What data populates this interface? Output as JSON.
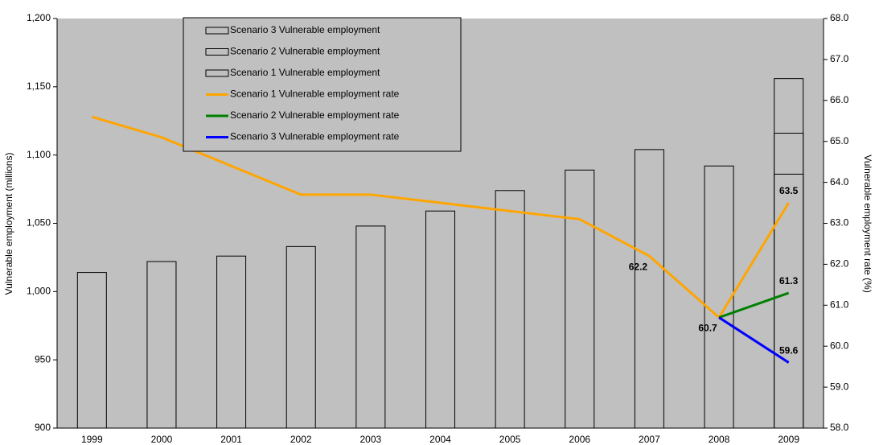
{
  "chart_data": {
    "type": "bar-line",
    "y_label": "Vulnerable employment (millions)",
    "y2_label": "Vulnerable employment rate (%)",
    "categories": [
      "1999",
      "2000",
      "2001",
      "2002",
      "2003",
      "2004",
      "2005",
      "2006",
      "2007",
      "2008",
      "2009"
    ],
    "ylim": [
      900,
      1200
    ],
    "yticks": [
      900,
      950,
      {
        "value": 1000,
        "label": "1,000"
      },
      {
        "value": 1050,
        "label": "1,050"
      },
      {
        "value": 1100,
        "label": "1,100"
      },
      {
        "value": 1150,
        "label": "1,150"
      },
      {
        "value": 1200,
        "label": "1,200"
      }
    ],
    "y2lim": [
      58,
      68
    ],
    "y2ticks": [
      {
        "value": 58,
        "label": "58.0"
      },
      {
        "value": 59,
        "label": "59.0"
      },
      {
        "value": 60,
        "label": "60.0"
      },
      {
        "value": 61,
        "label": "61.0"
      },
      {
        "value": 62,
        "label": "62.0"
      },
      {
        "value": 63,
        "label": "63.0"
      },
      {
        "value": 64,
        "label": "64.0"
      },
      {
        "value": 65,
        "label": "65.0"
      },
      {
        "value": 66,
        "label": "66.0"
      },
      {
        "value": 67,
        "label": "67.0"
      },
      {
        "value": 68,
        "label": "68.0"
      }
    ],
    "legend": "top-left",
    "background": "#c0c0c0",
    "series": [
      {
        "name": "Scenario 3 Vulnerable employment",
        "kind": "bar",
        "color": "#c0c0c0",
        "values": [
          null,
          null,
          null,
          null,
          null,
          null,
          null,
          null,
          null,
          null,
          1156
        ]
      },
      {
        "name": "Scenario 2 Vulnerable employment",
        "kind": "bar",
        "color": "#c0c0c0",
        "values": [
          null,
          null,
          null,
          null,
          null,
          null,
          null,
          null,
          null,
          null,
          1116
        ]
      },
      {
        "name": "Scenario 1 Vulnerable employment",
        "kind": "bar",
        "color": "#c0c0c0",
        "values": [
          1014,
          1022,
          1026,
          1033,
          1048,
          1059,
          1074,
          1089,
          1104,
          1092,
          1086
        ]
      },
      {
        "name": "Scenario 1 Vulnerable employment rate",
        "kind": "line",
        "axis": "y2",
        "color": "#ffa500",
        "values": [
          65.6,
          65.1,
          64.4,
          63.7,
          63.7,
          63.5,
          63.3,
          63.1,
          62.2,
          60.7,
          63.5
        ],
        "value_labels": [
          null,
          null,
          null,
          null,
          null,
          null,
          null,
          null,
          "62.2",
          "60.7",
          "63.5"
        ]
      },
      {
        "name": "Scenario 2 Vulnerable employment rate",
        "kind": "line",
        "axis": "y2",
        "color": "#008000",
        "values": [
          null,
          null,
          null,
          null,
          null,
          null,
          null,
          null,
          null,
          60.7,
          61.3
        ],
        "value_labels": [
          null,
          null,
          null,
          null,
          null,
          null,
          null,
          null,
          null,
          null,
          "61.3"
        ]
      },
      {
        "name": "Scenario 3 Vulnerable employment rate",
        "kind": "line",
        "axis": "y2",
        "color": "#0000ff",
        "values": [
          null,
          null,
          null,
          null,
          null,
          null,
          null,
          null,
          null,
          60.7,
          59.6
        ],
        "value_labels": [
          null,
          null,
          null,
          null,
          null,
          null,
          null,
          null,
          null,
          null,
          "59.6"
        ]
      }
    ]
  }
}
